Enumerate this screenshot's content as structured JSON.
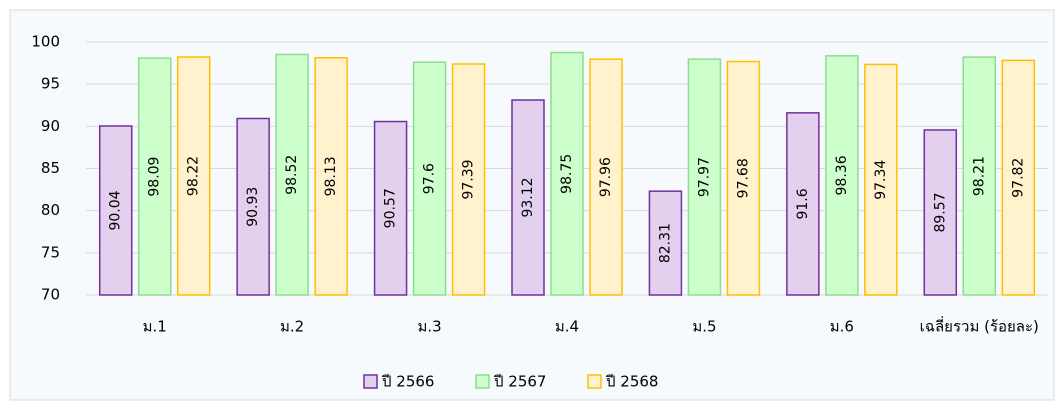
{
  "chart_data": {
    "type": "bar",
    "categories": [
      "ม.1",
      "ม.2",
      "ม.3",
      "ม.4",
      "ม.5",
      "ม.6",
      "เฉลี่ยรวม (ร้อยละ)"
    ],
    "series": [
      {
        "name": "ปี 2566",
        "color": "#e3d0ee",
        "stroke": "#7030a0",
        "values": [
          90.04,
          90.93,
          90.57,
          93.12,
          82.31,
          91.6,
          89.57
        ]
      },
      {
        "name": "ปี 2567",
        "color": "#ccffcc",
        "stroke": "#8fdc8f",
        "values": [
          98.09,
          98.52,
          97.6,
          98.75,
          97.97,
          98.36,
          98.21
        ]
      },
      {
        "name": "ปี 2568",
        "color": "#fff2cc",
        "stroke": "#ffc000",
        "values": [
          98.22,
          98.13,
          97.39,
          97.96,
          97.68,
          97.34,
          97.82
        ]
      }
    ],
    "ylim": [
      70,
      100
    ],
    "yticks": [
      70,
      75,
      80,
      85,
      90,
      95,
      100
    ],
    "grid": true,
    "legend": "bottom"
  }
}
